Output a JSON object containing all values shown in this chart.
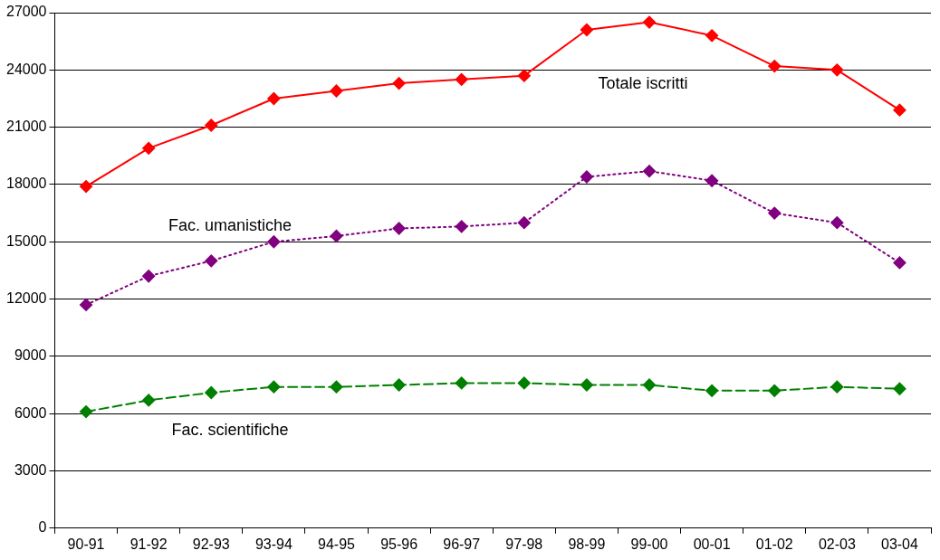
{
  "chart_data": {
    "type": "line",
    "categories": [
      "90-91",
      "91-92",
      "92-93",
      "93-94",
      "94-95",
      "95-96",
      "96-97",
      "97-98",
      "98-99",
      "99-00",
      "00-01",
      "01-02",
      "02-03",
      "03-04"
    ],
    "series": [
      {
        "name": "Totale iscritti",
        "color": "#ff0000",
        "line_style": "solid",
        "values": [
          17900,
          19900,
          21100,
          22500,
          22900,
          23300,
          23500,
          23700,
          26100,
          26500,
          25800,
          24200,
          24000,
          21900
        ]
      },
      {
        "name": "Fac. umanistiche",
        "color": "#800080",
        "line_style": "dotted",
        "values": [
          11700,
          13200,
          14000,
          15000,
          15300,
          15700,
          15800,
          16000,
          18400,
          18700,
          18200,
          16500,
          16000,
          13900
        ]
      },
      {
        "name": "Fac. scientifiche",
        "color": "#008000",
        "line_style": "dashed",
        "values": [
          6100,
          6700,
          7100,
          7400,
          7400,
          7500,
          7600,
          7600,
          7500,
          7500,
          7200,
          7200,
          7400,
          7300
        ]
      }
    ],
    "ylim": [
      0,
      27000
    ],
    "yticks": [
      0,
      3000,
      6000,
      9000,
      12000,
      15000,
      18000,
      21000,
      24000,
      27000
    ],
    "grid": "y",
    "marker": "diamond",
    "legend": false
  }
}
